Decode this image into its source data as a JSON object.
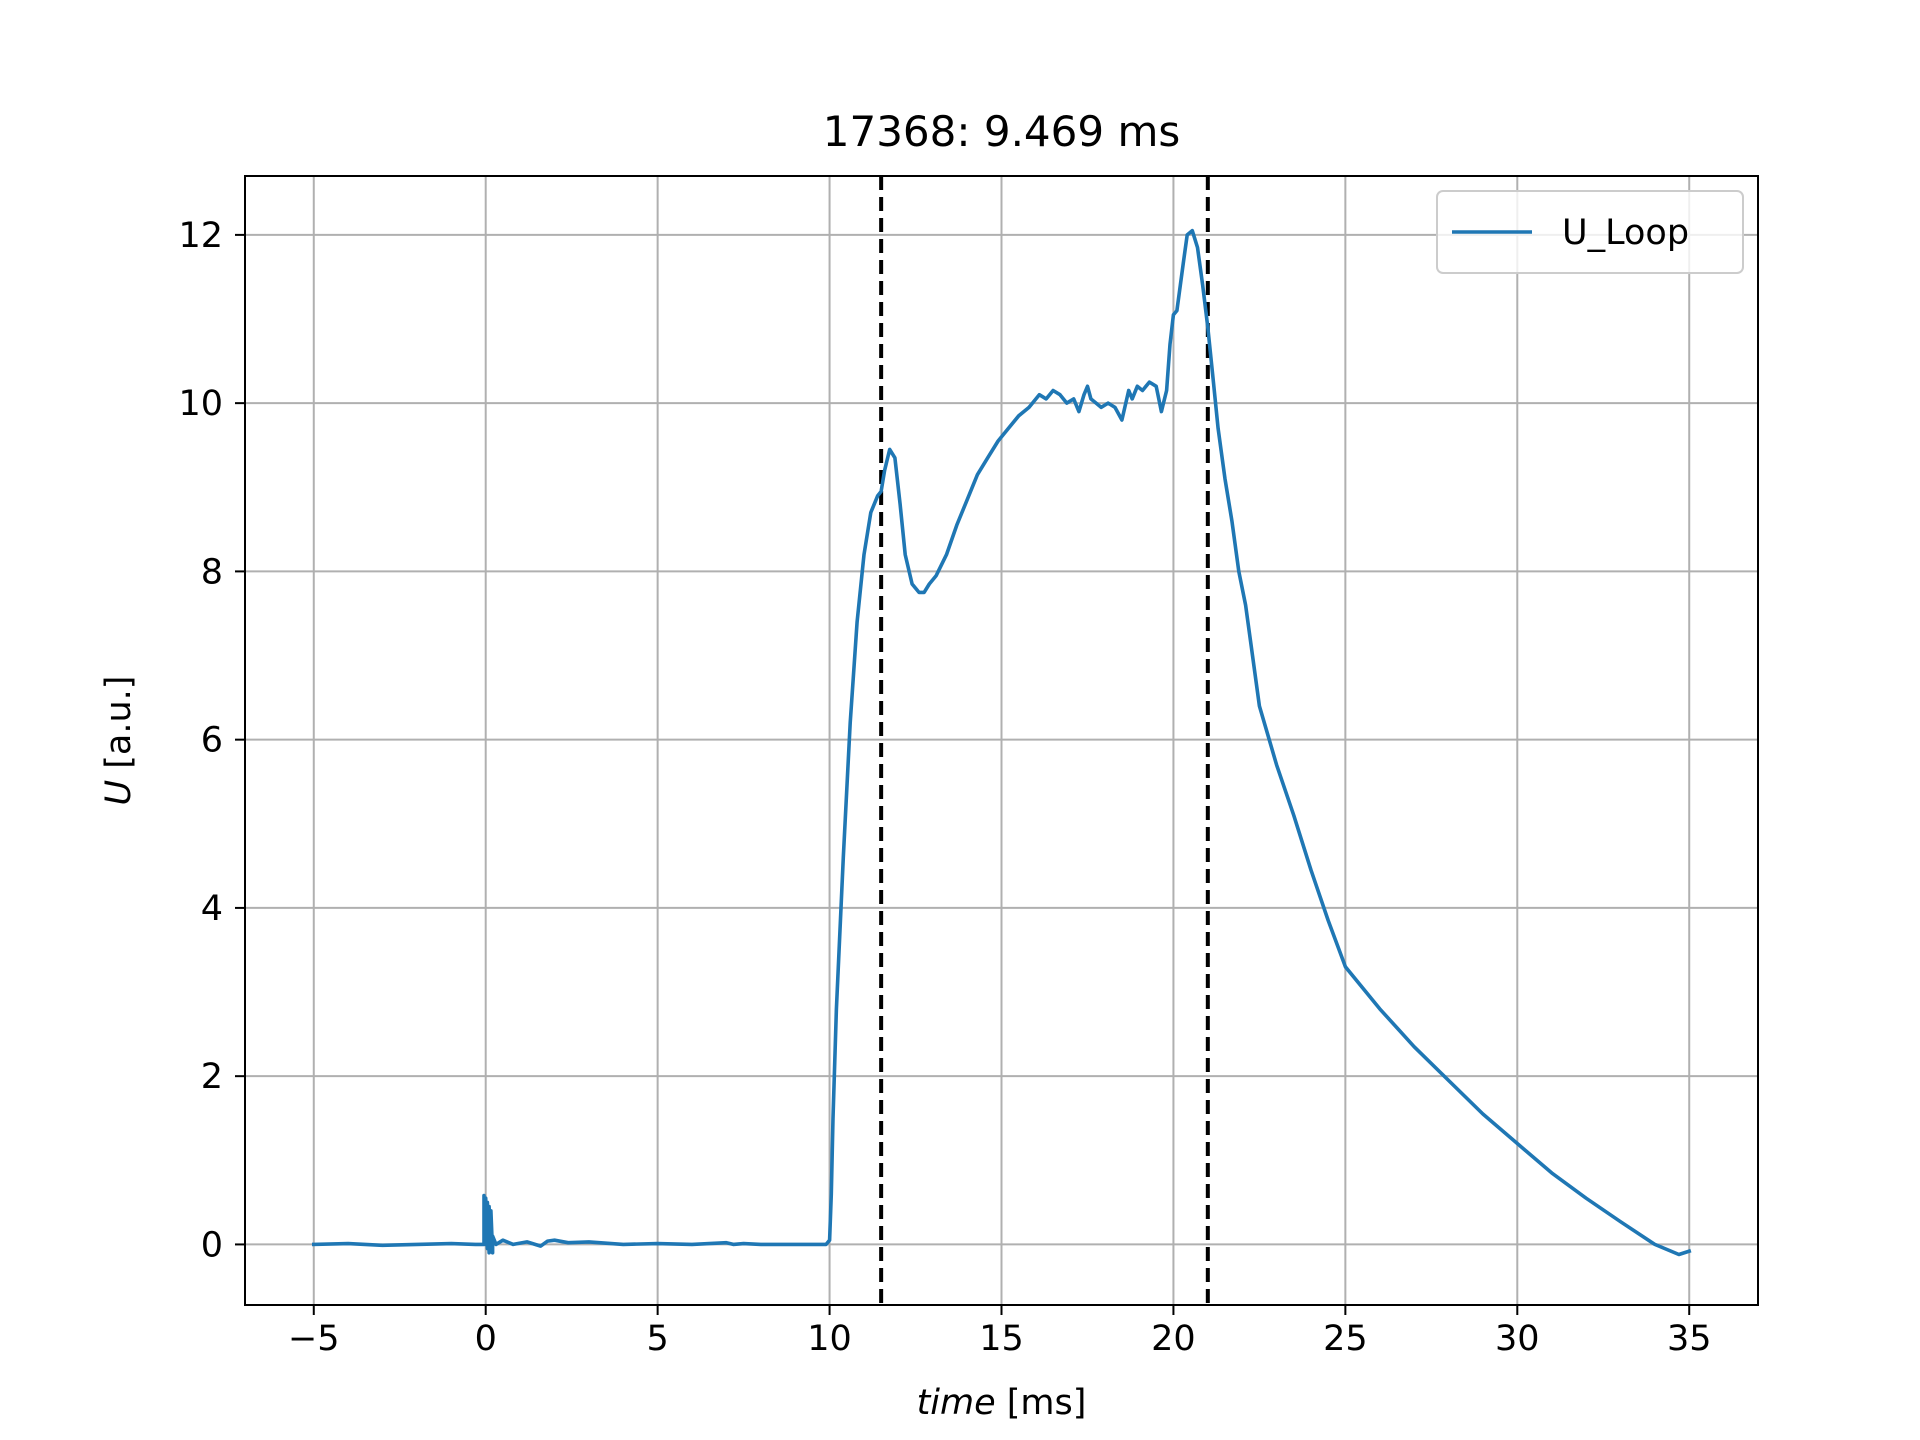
{
  "chart_data": {
    "type": "line",
    "title": "17368: 9.469 ms",
    "xlabel": {
      "var": "time",
      "unit": " [ms]"
    },
    "ylabel": {
      "var": "U",
      "unit": " [a.u.]"
    },
    "xlim": [
      -7,
      37
    ],
    "ylim": [
      -0.72,
      12.7
    ],
    "xticks": [
      -5,
      0,
      5,
      10,
      15,
      20,
      25,
      30,
      35
    ],
    "xtick_labels": [
      "−5",
      "0",
      "5",
      "10",
      "15",
      "20",
      "25",
      "30",
      "35"
    ],
    "yticks": [
      0,
      2,
      4,
      6,
      8,
      10,
      12
    ],
    "ytick_labels": [
      "0",
      "2",
      "4",
      "6",
      "8",
      "10",
      "12"
    ],
    "grid": true,
    "legend": {
      "position": "top-right",
      "entries": [
        "U_Loop"
      ]
    },
    "vlines": [
      {
        "x": 11.5,
        "style": "dashed",
        "color": "#000000"
      },
      {
        "x": 21.0,
        "style": "dashed",
        "color": "#000000"
      }
    ],
    "series": [
      {
        "name": "U_Loop",
        "color": "#1f77b4",
        "x": [
          -5.0,
          -4.0,
          -3.0,
          -2.0,
          -1.0,
          -0.3,
          -0.05,
          -0.05,
          0.0,
          0.0,
          0.05,
          0.05,
          0.1,
          0.1,
          0.15,
          0.15,
          0.2,
          0.2,
          0.3,
          0.5,
          0.8,
          1.2,
          1.6,
          1.8,
          2.0,
          2.4,
          3.0,
          4.0,
          5.0,
          6.0,
          7.0,
          7.2,
          7.5,
          8.0,
          9.0,
          9.9,
          10.0,
          10.05,
          10.1,
          10.2,
          10.4,
          10.6,
          10.8,
          11.0,
          11.2,
          11.4,
          11.5,
          11.6,
          11.75,
          11.9,
          12.05,
          12.2,
          12.4,
          12.6,
          12.75,
          12.9,
          13.1,
          13.4,
          13.7,
          14.0,
          14.3,
          14.6,
          14.9,
          15.2,
          15.5,
          15.8,
          16.1,
          16.3,
          16.5,
          16.7,
          16.9,
          17.1,
          17.25,
          17.4,
          17.5,
          17.6,
          17.75,
          17.9,
          18.1,
          18.3,
          18.5,
          18.7,
          18.8,
          18.95,
          19.1,
          19.3,
          19.5,
          19.65,
          19.8,
          19.9,
          20.0,
          20.1,
          20.2,
          20.3,
          20.4,
          20.55,
          20.7,
          20.85,
          21.0,
          21.15,
          21.3,
          21.5,
          21.7,
          21.9,
          22.1,
          22.3,
          22.5,
          23.0,
          23.5,
          24.0,
          24.5,
          25.0,
          26.0,
          27.0,
          28.0,
          29.0,
          30.0,
          31.0,
          32.0,
          33.0,
          34.0,
          34.7,
          35.0
        ],
        "y": [
          0.0,
          0.01,
          -0.01,
          0.0,
          0.01,
          0.0,
          0.0,
          0.58,
          0.0,
          0.55,
          -0.05,
          0.5,
          -0.1,
          0.45,
          -0.05,
          0.4,
          -0.1,
          0.1,
          0.0,
          0.05,
          0.0,
          0.03,
          -0.02,
          0.04,
          0.05,
          0.02,
          0.03,
          0.0,
          0.01,
          0.0,
          0.02,
          0.0,
          0.01,
          0.0,
          0.0,
          0.0,
          0.05,
          0.6,
          1.5,
          2.8,
          4.6,
          6.2,
          7.4,
          8.2,
          8.7,
          8.9,
          8.95,
          9.2,
          9.45,
          9.35,
          8.8,
          8.2,
          7.85,
          7.75,
          7.75,
          7.85,
          7.95,
          8.2,
          8.55,
          8.85,
          9.15,
          9.35,
          9.55,
          9.7,
          9.85,
          9.95,
          10.1,
          10.05,
          10.15,
          10.1,
          10.0,
          10.05,
          9.9,
          10.1,
          10.2,
          10.05,
          10.0,
          9.95,
          10.0,
          9.95,
          9.8,
          10.15,
          10.05,
          10.2,
          10.15,
          10.25,
          10.2,
          9.9,
          10.15,
          10.7,
          11.05,
          11.1,
          11.4,
          11.7,
          12.0,
          12.05,
          11.85,
          11.4,
          10.9,
          10.3,
          9.7,
          9.1,
          8.6,
          8.0,
          7.6,
          7.0,
          6.4,
          5.7,
          5.1,
          4.45,
          3.85,
          3.3,
          2.8,
          2.35,
          1.95,
          1.55,
          1.2,
          0.85,
          0.55,
          0.27,
          0.0,
          -0.12,
          -0.08
        ]
      }
    ]
  }
}
